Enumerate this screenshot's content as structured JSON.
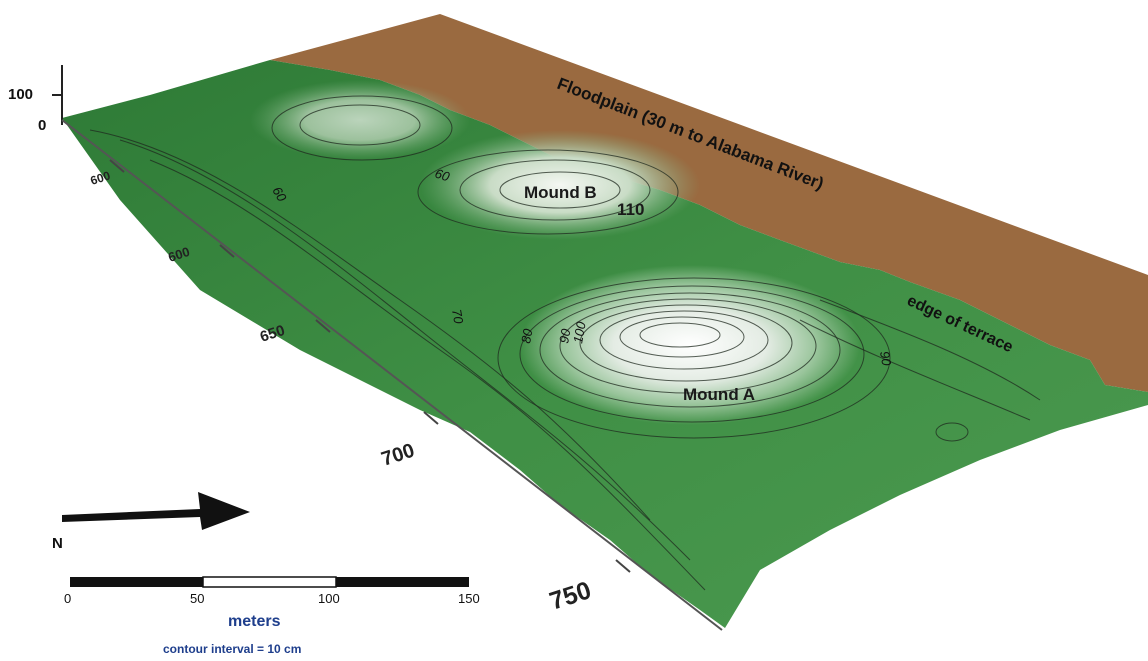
{
  "map": {
    "floodplain_label": "Floodplain (30 m to Alabama River)",
    "terrace_label": "edge of terrace",
    "mound_a_label": "Mound A",
    "mound_b_label": "Mound B",
    "mound_b_elevation": "110",
    "contour_labels": [
      "60",
      "60",
      "70",
      "80",
      "90",
      "100",
      "90"
    ],
    "vertical_axis_top": "100",
    "vertical_axis_bottom": "0",
    "distance_ticks": [
      "600",
      "600",
      "650",
      "700",
      "750"
    ],
    "north_label": "N",
    "scale_ticks": [
      "0",
      "50",
      "100",
      "150"
    ],
    "scale_unit": "meters",
    "contour_interval": "contour interval = 10 cm",
    "colors": {
      "floodplain": "#9a6a40",
      "terrain_low": "#2f7d3a",
      "terrain_mid": "#6aa96a",
      "terrain_high": "#f2f5f0",
      "label_blue": "#1e3e8c",
      "scale_black": "#111111"
    }
  }
}
